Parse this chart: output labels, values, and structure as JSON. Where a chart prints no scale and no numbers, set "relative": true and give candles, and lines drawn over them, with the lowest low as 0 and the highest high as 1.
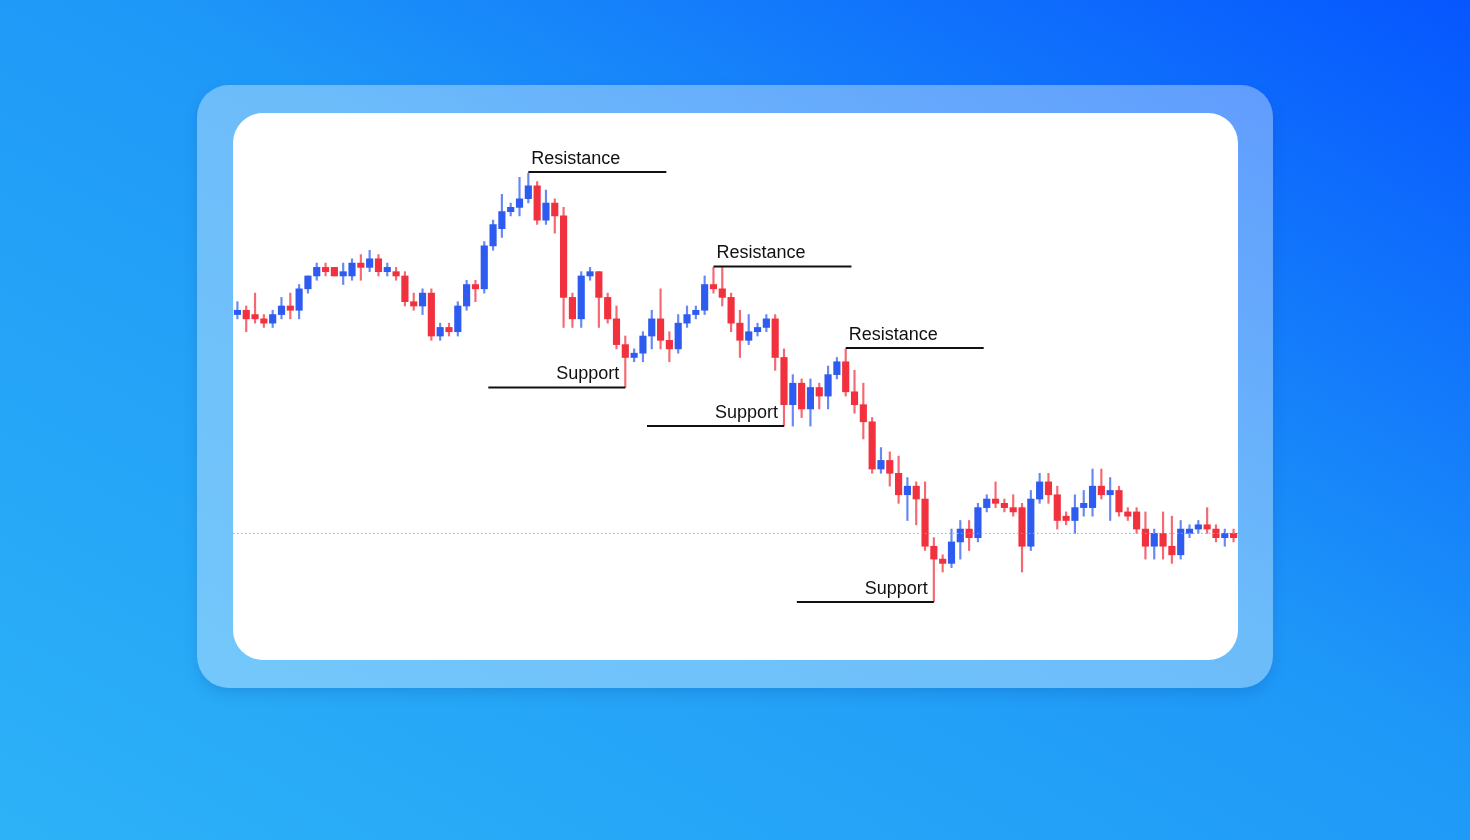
{
  "chart_data": {
    "type": "candlestick",
    "relative": true,
    "categories": [
      null,
      null,
      null,
      null,
      null,
      null,
      null,
      null,
      null,
      null,
      null,
      null,
      null,
      null,
      null,
      null,
      null,
      null,
      null,
      null,
      null,
      null,
      null,
      null,
      null,
      null,
      null,
      null,
      null,
      null,
      null,
      null,
      null,
      null,
      null,
      null,
      null,
      null,
      null,
      null,
      null,
      null,
      null,
      null,
      null,
      null,
      null,
      null,
      null,
      null,
      null,
      null,
      null,
      null,
      null,
      null,
      null,
      null,
      null,
      null,
      null,
      null,
      null,
      null,
      null,
      null,
      null,
      null,
      null,
      null,
      null,
      null,
      null,
      null,
      null,
      null,
      null,
      null,
      null,
      null,
      null,
      null,
      null,
      null,
      null,
      null,
      null,
      null,
      null,
      null,
      null,
      null,
      null,
      null,
      null,
      null,
      null,
      null,
      null,
      null,
      null,
      null,
      null,
      null,
      null,
      null,
      null,
      null,
      null,
      null,
      null,
      null,
      null,
      null
    ],
    "ohlc": [
      [
        0.67,
        0.7,
        0.66,
        0.68
      ],
      [
        0.68,
        0.69,
        0.63,
        0.66
      ],
      [
        0.67,
        0.72,
        0.65,
        0.66
      ],
      [
        0.66,
        0.67,
        0.64,
        0.65
      ],
      [
        0.65,
        0.68,
        0.64,
        0.67
      ],
      [
        0.67,
        0.71,
        0.66,
        0.69
      ],
      [
        0.69,
        0.72,
        0.66,
        0.68
      ],
      [
        0.68,
        0.74,
        0.66,
        0.73
      ],
      [
        0.73,
        0.76,
        0.72,
        0.76
      ],
      [
        0.76,
        0.79,
        0.75,
        0.78
      ],
      [
        0.78,
        0.79,
        0.76,
        0.77
      ],
      [
        0.78,
        0.78,
        0.76,
        0.76
      ],
      [
        0.76,
        0.79,
        0.74,
        0.77
      ],
      [
        0.76,
        0.8,
        0.75,
        0.79
      ],
      [
        0.79,
        0.81,
        0.75,
        0.78
      ],
      [
        0.78,
        0.82,
        0.77,
        0.8
      ],
      [
        0.8,
        0.81,
        0.76,
        0.77
      ],
      [
        0.77,
        0.79,
        0.76,
        0.78
      ],
      [
        0.77,
        0.78,
        0.75,
        0.76
      ],
      [
        0.76,
        0.77,
        0.69,
        0.7
      ],
      [
        0.7,
        0.72,
        0.68,
        0.69
      ],
      [
        0.69,
        0.73,
        0.67,
        0.72
      ],
      [
        0.72,
        0.73,
        0.61,
        0.62
      ],
      [
        0.62,
        0.65,
        0.61,
        0.64
      ],
      [
        0.64,
        0.65,
        0.62,
        0.63
      ],
      [
        0.63,
        0.7,
        0.62,
        0.69
      ],
      [
        0.69,
        0.75,
        0.68,
        0.74
      ],
      [
        0.74,
        0.75,
        0.7,
        0.73
      ],
      [
        0.73,
        0.84,
        0.72,
        0.83
      ],
      [
        0.83,
        0.89,
        0.82,
        0.88
      ],
      [
        0.87,
        0.95,
        0.85,
        0.91
      ],
      [
        0.91,
        0.93,
        0.9,
        0.92
      ],
      [
        0.92,
        0.99,
        0.9,
        0.94
      ],
      [
        0.94,
        1.0,
        0.93,
        0.97
      ],
      [
        0.97,
        0.98,
        0.88,
        0.89
      ],
      [
        0.89,
        0.96,
        0.88,
        0.93
      ],
      [
        0.93,
        0.94,
        0.86,
        0.9
      ],
      [
        0.9,
        0.92,
        0.64,
        0.71
      ],
      [
        0.71,
        0.72,
        0.64,
        0.66
      ],
      [
        0.66,
        0.77,
        0.64,
        0.76
      ],
      [
        0.76,
        0.78,
        0.75,
        0.77
      ],
      [
        0.77,
        0.77,
        0.64,
        0.71
      ],
      [
        0.71,
        0.72,
        0.65,
        0.66
      ],
      [
        0.66,
        0.69,
        0.59,
        0.6
      ],
      [
        0.6,
        0.62,
        0.5,
        0.57
      ],
      [
        0.57,
        0.59,
        0.56,
        0.58
      ],
      [
        0.58,
        0.63,
        0.56,
        0.62
      ],
      [
        0.62,
        0.68,
        0.59,
        0.66
      ],
      [
        0.66,
        0.73,
        0.59,
        0.61
      ],
      [
        0.61,
        0.63,
        0.56,
        0.59
      ],
      [
        0.59,
        0.67,
        0.58,
        0.65
      ],
      [
        0.65,
        0.69,
        0.64,
        0.67
      ],
      [
        0.67,
        0.69,
        0.66,
        0.68
      ],
      [
        0.68,
        0.76,
        0.67,
        0.74
      ],
      [
        0.74,
        0.78,
        0.72,
        0.73
      ],
      [
        0.73,
        0.78,
        0.69,
        0.71
      ],
      [
        0.71,
        0.72,
        0.63,
        0.65
      ],
      [
        0.65,
        0.68,
        0.57,
        0.61
      ],
      [
        0.61,
        0.67,
        0.6,
        0.63
      ],
      [
        0.63,
        0.65,
        0.62,
        0.64
      ],
      [
        0.64,
        0.67,
        0.63,
        0.66
      ],
      [
        0.66,
        0.67,
        0.54,
        0.57
      ],
      [
        0.57,
        0.59,
        0.41,
        0.46
      ],
      [
        0.46,
        0.53,
        0.41,
        0.51
      ],
      [
        0.51,
        0.52,
        0.43,
        0.45
      ],
      [
        0.45,
        0.52,
        0.41,
        0.5
      ],
      [
        0.5,
        0.51,
        0.45,
        0.48
      ],
      [
        0.48,
        0.55,
        0.45,
        0.53
      ],
      [
        0.53,
        0.57,
        0.52,
        0.56
      ],
      [
        0.56,
        0.59,
        0.48,
        0.49
      ],
      [
        0.49,
        0.54,
        0.44,
        0.46
      ],
      [
        0.46,
        0.51,
        0.38,
        0.42
      ],
      [
        0.42,
        0.43,
        0.3,
        0.31
      ],
      [
        0.31,
        0.36,
        0.3,
        0.33
      ],
      [
        0.33,
        0.35,
        0.27,
        0.3
      ],
      [
        0.3,
        0.34,
        0.23,
        0.25
      ],
      [
        0.25,
        0.29,
        0.19,
        0.27
      ],
      [
        0.27,
        0.28,
        0.18,
        0.24
      ],
      [
        0.24,
        0.28,
        0.12,
        0.13
      ],
      [
        0.13,
        0.15,
        0,
        0.1
      ],
      [
        0.1,
        0.11,
        0.07,
        0.09
      ],
      [
        0.09,
        0.17,
        0.08,
        0.14
      ],
      [
        0.14,
        0.19,
        0.1,
        0.17
      ],
      [
        0.17,
        0.19,
        0.12,
        0.15
      ],
      [
        0.15,
        0.23,
        0.14,
        0.22
      ],
      [
        0.22,
        0.25,
        0.21,
        0.24
      ],
      [
        0.24,
        0.28,
        0.22,
        0.23
      ],
      [
        0.23,
        0.24,
        0.21,
        0.22
      ],
      [
        0.22,
        0.25,
        0.2,
        0.21
      ],
      [
        0.22,
        0.23,
        0.07,
        0.13
      ],
      [
        0.13,
        0.26,
        0.12,
        0.24
      ],
      [
        0.24,
        0.3,
        0.23,
        0.28
      ],
      [
        0.28,
        0.3,
        0.23,
        0.25
      ],
      [
        0.25,
        0.27,
        0.17,
        0.19
      ],
      [
        0.2,
        0.21,
        0.18,
        0.19
      ],
      [
        0.19,
        0.25,
        0.16,
        0.22
      ],
      [
        0.22,
        0.26,
        0.2,
        0.23
      ],
      [
        0.22,
        0.31,
        0.2,
        0.27
      ],
      [
        0.27,
        0.31,
        0.24,
        0.25
      ],
      [
        0.25,
        0.29,
        0.19,
        0.26
      ],
      [
        0.26,
        0.27,
        0.2,
        0.21
      ],
      [
        0.21,
        0.22,
        0.19,
        0.2
      ],
      [
        0.21,
        0.22,
        0.16,
        0.17
      ],
      [
        0.17,
        0.21,
        0.1,
        0.13
      ],
      [
        0.13,
        0.17,
        0.1,
        0.16
      ],
      [
        0.16,
        0.21,
        0.1,
        0.13
      ],
      [
        0.13,
        0.2,
        0.09,
        0.11
      ],
      [
        0.11,
        0.19,
        0.1,
        0.17
      ],
      [
        0.16,
        0.18,
        0.15,
        0.17
      ],
      [
        0.17,
        0.19,
        0.16,
        0.18
      ],
      [
        0.18,
        0.22,
        0.16,
        0.17
      ],
      [
        0.17,
        0.18,
        0.14,
        0.15
      ],
      [
        0.15,
        0.17,
        0.13,
        0.16
      ],
      [
        0.16,
        0.17,
        0.14,
        0.15
      ]
    ],
    "colors": [
      "#2e5bf0",
      "#f2313f",
      "#f2313f",
      "#f2313f",
      "#2e5bf0",
      "#2e5bf0",
      "#f2313f",
      "#2e5bf0",
      "#2e5bf0",
      "#2e5bf0",
      "#f2313f",
      "#f2313f",
      "#2e5bf0",
      "#2e5bf0",
      "#f2313f",
      "#2e5bf0",
      "#f2313f",
      "#2e5bf0",
      "#f2313f",
      "#f2313f",
      "#f2313f",
      "#2e5bf0",
      "#f2313f",
      "#2e5bf0",
      "#f2313f",
      "#2e5bf0",
      "#2e5bf0",
      "#f2313f",
      "#2e5bf0",
      "#2e5bf0",
      "#2e5bf0",
      "#2e5bf0",
      "#2e5bf0",
      "#2e5bf0",
      "#f2313f",
      "#2e5bf0",
      "#f2313f",
      "#f2313f",
      "#f2313f",
      "#2e5bf0",
      "#2e5bf0",
      "#f2313f",
      "#f2313f",
      "#f2313f",
      "#f2313f",
      "#2e5bf0",
      "#2e5bf0",
      "#2e5bf0",
      "#f2313f",
      "#f2313f",
      "#2e5bf0",
      "#2e5bf0",
      "#2e5bf0",
      "#2e5bf0",
      "#f2313f",
      "#f2313f",
      "#f2313f",
      "#f2313f",
      "#2e5bf0",
      "#2e5bf0",
      "#2e5bf0",
      "#f2313f",
      "#f2313f",
      "#2e5bf0",
      "#f2313f",
      "#2e5bf0",
      "#f2313f",
      "#2e5bf0",
      "#2e5bf0",
      "#f2313f",
      "#f2313f",
      "#f2313f",
      "#f2313f",
      "#2e5bf0",
      "#f2313f",
      "#f2313f",
      "#2e5bf0",
      "#f2313f",
      "#f2313f",
      "#f2313f",
      "#f2313f",
      "#2e5bf0",
      "#2e5bf0",
      "#f2313f",
      "#2e5bf0",
      "#2e5bf0",
      "#f2313f",
      "#f2313f",
      "#f2313f",
      "#f2313f",
      "#2e5bf0",
      "#2e5bf0",
      "#f2313f",
      "#f2313f",
      "#f2313f",
      "#2e5bf0",
      "#2e5bf0",
      "#2e5bf0",
      "#f2313f",
      "#2e5bf0",
      "#f2313f",
      "#f2313f",
      "#f2313f",
      "#f2313f",
      "#2e5bf0",
      "#f2313f",
      "#f2313f",
      "#2e5bf0",
      "#2e5bf0",
      "#2e5bf0",
      "#f2313f",
      "#f2313f",
      "#2e5bf0",
      "#f2313f"
    ],
    "ref_lines": [
      {
        "axis": "y",
        "value": 0.16,
        "color": "#8aa6f5",
        "line_style": "dotted"
      },
      {
        "axis": "y",
        "value": 1.0,
        "label": "Resistance",
        "color": "#111111"
      },
      {
        "axis": "y",
        "value": 0.5,
        "label": "Support",
        "color": "#111111"
      },
      {
        "axis": "y",
        "value": 0.78,
        "label": "Resistance",
        "color": "#111111"
      },
      {
        "axis": "y",
        "value": 0.41,
        "label": "Support",
        "color": "#111111"
      },
      {
        "axis": "y",
        "value": 0.59,
        "label": "Resistance",
        "color": "#111111"
      },
      {
        "axis": "y",
        "value": 0,
        "label": "Support",
        "color": "#111111"
      }
    ]
  }
}
